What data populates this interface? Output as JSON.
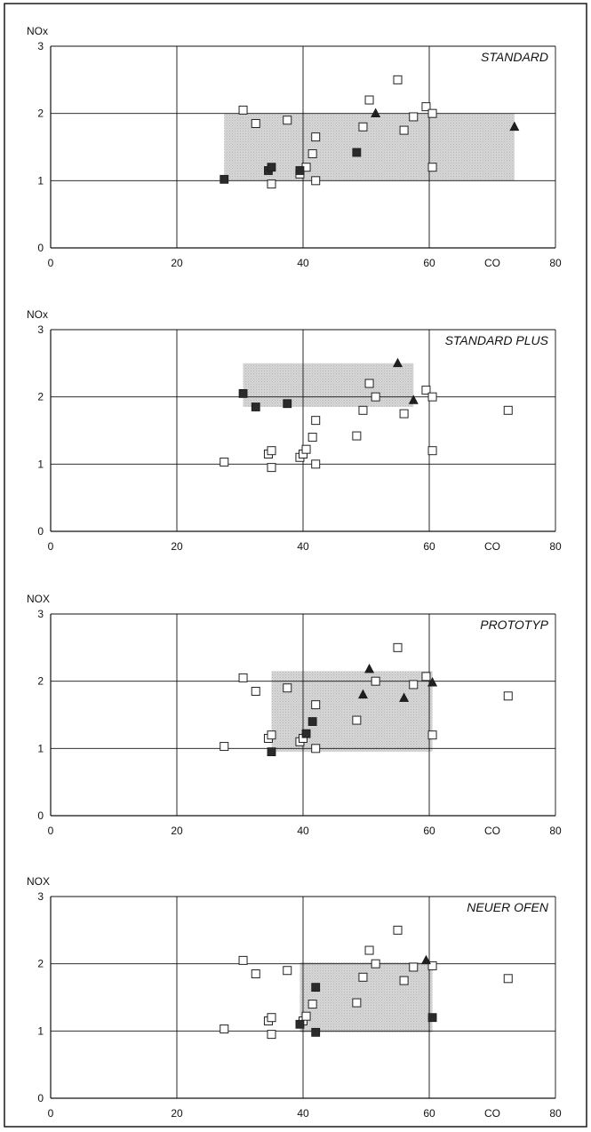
{
  "chart_data": [
    {
      "type": "scatter",
      "title": "STANDARD",
      "xlabel": "CO",
      "ylabel": "NOx",
      "xlim": [
        0,
        80
      ],
      "ylim": [
        0,
        3
      ],
      "xticks": [
        "0",
        "20",
        "40",
        "60",
        "80"
      ],
      "yticks": [
        "0",
        "1",
        "2",
        "3"
      ],
      "grid": true,
      "region": {
        "x": [
          27.5,
          73.5
        ],
        "y": [
          1.0,
          2.0
        ]
      },
      "open_squares": [
        {
          "x": 30.5,
          "y": 2.05
        },
        {
          "x": 32.5,
          "y": 1.85
        },
        {
          "x": 37.5,
          "y": 1.9
        },
        {
          "x": 35,
          "y": 0.95
        },
        {
          "x": 39.5,
          "y": 1.1
        },
        {
          "x": 40.5,
          "y": 1.2
        },
        {
          "x": 41.5,
          "y": 1.4
        },
        {
          "x": 42,
          "y": 1.65
        },
        {
          "x": 42,
          "y": 1.0
        },
        {
          "x": 49.5,
          "y": 1.8
        },
        {
          "x": 50.5,
          "y": 2.2
        },
        {
          "x": 55,
          "y": 2.5
        },
        {
          "x": 56,
          "y": 1.75
        },
        {
          "x": 57.5,
          "y": 1.95
        },
        {
          "x": 59.5,
          "y": 2.1
        },
        {
          "x": 60.5,
          "y": 2.0
        },
        {
          "x": 60.5,
          "y": 1.2
        }
      ],
      "filled_squares": [
        {
          "x": 27.5,
          "y": 1.02
        },
        {
          "x": 34.5,
          "y": 1.15
        },
        {
          "x": 35,
          "y": 1.2
        },
        {
          "x": 39.5,
          "y": 1.15
        },
        {
          "x": 48.5,
          "y": 1.42
        }
      ],
      "triangles": [
        {
          "x": 51.5,
          "y": 2.0
        },
        {
          "x": 73.5,
          "y": 1.8
        }
      ]
    },
    {
      "type": "scatter",
      "title": "STANDARD PLUS",
      "xlabel": "CO",
      "ylabel": "NOx",
      "xlim": [
        0,
        80
      ],
      "ylim": [
        0,
        3
      ],
      "xticks": [
        "0",
        "20",
        "40",
        "60",
        "80"
      ],
      "yticks": [
        "0",
        "1",
        "2",
        "3"
      ],
      "grid": true,
      "region": {
        "x": [
          30.5,
          57.5
        ],
        "y": [
          1.85,
          2.5
        ]
      },
      "open_squares": [
        {
          "x": 27.5,
          "y": 1.03
        },
        {
          "x": 34.5,
          "y": 1.15
        },
        {
          "x": 35,
          "y": 1.2
        },
        {
          "x": 35,
          "y": 0.95
        },
        {
          "x": 39.5,
          "y": 1.1
        },
        {
          "x": 40,
          "y": 1.15
        },
        {
          "x": 40.5,
          "y": 1.22
        },
        {
          "x": 41.5,
          "y": 1.4
        },
        {
          "x": 42,
          "y": 1.65
        },
        {
          "x": 42,
          "y": 1.0
        },
        {
          "x": 48.5,
          "y": 1.42
        },
        {
          "x": 49.5,
          "y": 1.8
        },
        {
          "x": 50.5,
          "y": 2.2
        },
        {
          "x": 51.5,
          "y": 2.0
        },
        {
          "x": 56,
          "y": 1.75
        },
        {
          "x": 59.5,
          "y": 2.1
        },
        {
          "x": 60.5,
          "y": 2.0
        },
        {
          "x": 60.5,
          "y": 1.2
        },
        {
          "x": 72.5,
          "y": 1.8
        }
      ],
      "filled_squares": [
        {
          "x": 30.5,
          "y": 2.05
        },
        {
          "x": 32.5,
          "y": 1.85
        },
        {
          "x": 37.5,
          "y": 1.9
        }
      ],
      "triangles": [
        {
          "x": 55,
          "y": 2.5
        },
        {
          "x": 57.5,
          "y": 1.95
        }
      ]
    },
    {
      "type": "scatter",
      "title": "PROTOTYP",
      "xlabel": "CO",
      "ylabel": "NOX",
      "xlim": [
        0,
        80
      ],
      "ylim": [
        0,
        3
      ],
      "xticks": [
        "0",
        "20",
        "40",
        "60",
        "80"
      ],
      "yticks": [
        "0",
        "1",
        "2",
        "3"
      ],
      "grid": true,
      "region": {
        "x": [
          35,
          60.5
        ],
        "y": [
          0.95,
          2.15
        ]
      },
      "open_squares": [
        {
          "x": 27.5,
          "y": 1.03
        },
        {
          "x": 30.5,
          "y": 2.05
        },
        {
          "x": 32.5,
          "y": 1.85
        },
        {
          "x": 34.5,
          "y": 1.15
        },
        {
          "x": 35,
          "y": 1.2
        },
        {
          "x": 37.5,
          "y": 1.9
        },
        {
          "x": 39.5,
          "y": 1.1
        },
        {
          "x": 40,
          "y": 1.15
        },
        {
          "x": 42,
          "y": 1.65
        },
        {
          "x": 42,
          "y": 1.0
        },
        {
          "x": 48.5,
          "y": 1.42
        },
        {
          "x": 51.5,
          "y": 2.0
        },
        {
          "x": 55,
          "y": 2.5
        },
        {
          "x": 57.5,
          "y": 1.95
        },
        {
          "x": 59.5,
          "y": 2.07
        },
        {
          "x": 60.5,
          "y": 1.2
        },
        {
          "x": 72.5,
          "y": 1.78
        }
      ],
      "filled_squares": [
        {
          "x": 35,
          "y": 0.95
        },
        {
          "x": 40.5,
          "y": 1.22
        },
        {
          "x": 41.5,
          "y": 1.4
        }
      ],
      "triangles": [
        {
          "x": 50.5,
          "y": 2.18
        },
        {
          "x": 49.5,
          "y": 1.8
        },
        {
          "x": 56,
          "y": 1.75
        },
        {
          "x": 60.5,
          "y": 1.98
        }
      ]
    },
    {
      "type": "scatter",
      "title": "NEUER OFEN",
      "xlabel": "CO",
      "ylabel": "NOX",
      "xlim": [
        0,
        80
      ],
      "ylim": [
        0,
        3
      ],
      "xticks": [
        "0",
        "20",
        "40",
        "60",
        "80"
      ],
      "yticks": [
        "0",
        "1",
        "2",
        "3"
      ],
      "grid": true,
      "region": {
        "x": [
          39.5,
          60.5
        ],
        "y": [
          0.98,
          2.02
        ]
      },
      "open_squares": [
        {
          "x": 27.5,
          "y": 1.03
        },
        {
          "x": 30.5,
          "y": 2.05
        },
        {
          "x": 32.5,
          "y": 1.85
        },
        {
          "x": 34.5,
          "y": 1.15
        },
        {
          "x": 35,
          "y": 1.2
        },
        {
          "x": 35,
          "y": 0.95
        },
        {
          "x": 37.5,
          "y": 1.9
        },
        {
          "x": 40,
          "y": 1.15
        },
        {
          "x": 40.5,
          "y": 1.22
        },
        {
          "x": 41.5,
          "y": 1.4
        },
        {
          "x": 48.5,
          "y": 1.42
        },
        {
          "x": 49.5,
          "y": 1.8
        },
        {
          "x": 50.5,
          "y": 2.2
        },
        {
          "x": 51.5,
          "y": 2.0
        },
        {
          "x": 55,
          "y": 2.5
        },
        {
          "x": 56,
          "y": 1.75
        },
        {
          "x": 57.5,
          "y": 1.95
        },
        {
          "x": 60.5,
          "y": 1.97
        },
        {
          "x": 72.5,
          "y": 1.78
        }
      ],
      "filled_squares": [
        {
          "x": 39.5,
          "y": 1.1
        },
        {
          "x": 42,
          "y": 1.65
        },
        {
          "x": 42,
          "y": 0.98
        },
        {
          "x": 60.5,
          "y": 1.2
        }
      ],
      "triangles": [
        {
          "x": 59.5,
          "y": 2.05
        }
      ]
    }
  ],
  "colors": {
    "region": "#d4d4d4",
    "frame": "#1a1a1a",
    "filled_marker": "#2b2b2b"
  }
}
